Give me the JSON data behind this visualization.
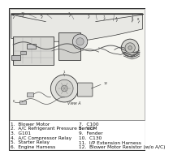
{
  "background_color": "#ffffff",
  "border_color": "#333333",
  "diagram_bg": "#f5f5f0",
  "legend_left": [
    "1.  Blower Motor",
    "2.  A/C Refrigerant Pressure Sensor",
    "3.  G101",
    "4.  A/C Compressor Relay",
    "5.  Starter Relay",
    "6.  Engine Harness"
  ],
  "legend_right": [
    "7.  C100",
    "8.  VCM",
    "9.  Fender",
    "10.  C130",
    "11.  I/P Extension Harness",
    "12.  Blower Motor Resistor (w/o A/C)"
  ],
  "view_label": "View A",
  "font_size": 4.2,
  "line_color": "#555555",
  "dark_line": "#333333"
}
